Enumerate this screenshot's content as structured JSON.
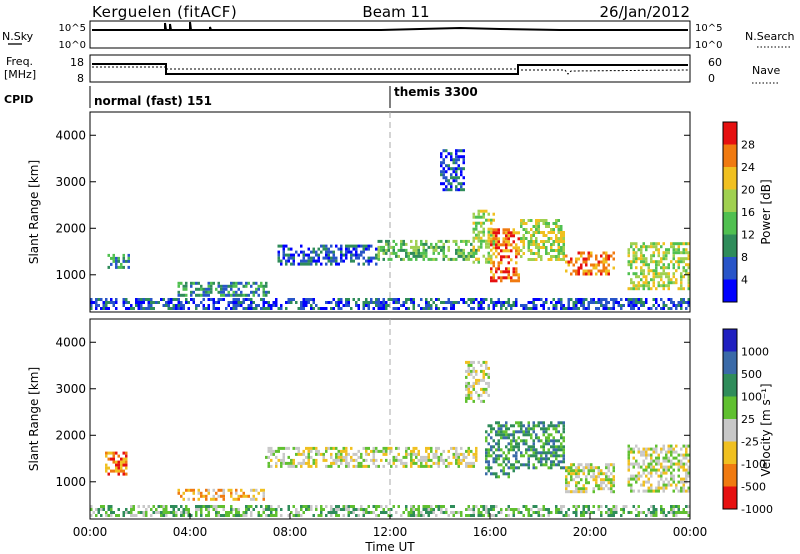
{
  "header": {
    "station": "Kerguelen (fitACF)",
    "beam": "Beam 11",
    "date": "26/Jan/2012"
  },
  "summary_panels": {
    "nsky_label": "N.Sky",
    "nsky_ticks": [
      "10^5",
      "10^0"
    ],
    "nsearch_label": "N.Search",
    "nsearch_ticks": [
      "10^5",
      "10^0"
    ],
    "freq_label_1": "Freq.",
    "freq_label_2": "[MHz]",
    "freq_ticks": [
      "18",
      "8"
    ],
    "nave_label": "Nave",
    "nave_ticks": [
      "60",
      "0"
    ],
    "cpid_label": "CPID",
    "cpid_segments": [
      {
        "label": "normal (fast) 151",
        "start_hour": 0
      },
      {
        "label": "themis 3300",
        "start_hour": 12
      }
    ]
  },
  "chart_data": [
    {
      "type": "heatmap",
      "name": "power",
      "ylabel": "Slant Range [km]",
      "yticks": [
        1000,
        2000,
        3000,
        4000
      ],
      "ylim": [
        200,
        4500
      ],
      "xlim": [
        0,
        24
      ],
      "colorbar_label": "Power [dB]",
      "colorbar_ticks": [
        "28",
        "24",
        "20",
        "16",
        "12",
        "8",
        "4"
      ],
      "colorbar_colors": [
        "#0000ff",
        "#2855c8",
        "#2f8c5a",
        "#50c050",
        "#a0d050",
        "#f0c020",
        "#f07a10",
        "#e61010"
      ],
      "regions": [
        {
          "t0": 0.0,
          "t1": 24.0,
          "r0": 250,
          "r1": 500,
          "level": 1
        },
        {
          "t0": 0.7,
          "t1": 1.6,
          "r0": 1150,
          "r1": 1450,
          "level": 2
        },
        {
          "t0": 3.5,
          "t1": 7.2,
          "r0": 550,
          "r1": 850,
          "level": 2
        },
        {
          "t0": 7.5,
          "t1": 11.5,
          "r0": 1250,
          "r1": 1650,
          "level": 1
        },
        {
          "t0": 11.5,
          "t1": 15.5,
          "r0": 1300,
          "r1": 1750,
          "level": 3
        },
        {
          "t0": 15.3,
          "t1": 16.2,
          "r0": 1300,
          "r1": 2400,
          "level": 4
        },
        {
          "t0": 16.0,
          "t1": 17.2,
          "r0": 900,
          "r1": 2000,
          "level": 6
        },
        {
          "t0": 17.2,
          "t1": 19.0,
          "r0": 1300,
          "r1": 2200,
          "level": 4
        },
        {
          "t0": 19.0,
          "t1": 21.0,
          "r0": 1000,
          "r1": 1500,
          "level": 6
        },
        {
          "t0": 21.5,
          "t1": 24.0,
          "r0": 700,
          "r1": 1700,
          "level": 4
        },
        {
          "t0": 14.0,
          "t1": 15.0,
          "r0": 2800,
          "r1": 3700,
          "level": 1
        }
      ]
    },
    {
      "type": "heatmap",
      "name": "velocity",
      "ylabel": "Slant Range [km]",
      "yticks": [
        1000,
        2000,
        3000,
        4000
      ],
      "ylim": [
        200,
        4500
      ],
      "xlim": [
        0,
        24
      ],
      "xlabel": "Time UT",
      "xticks": [
        "00:00",
        "04:00",
        "08:00",
        "12:00",
        "16:00",
        "20:00",
        "00:00"
      ],
      "colorbar_label": "Velocity [m s⁻¹]",
      "colorbar_ticks": [
        "1000",
        "500",
        "100",
        "25",
        "-25",
        "-100",
        "-500",
        "-1000"
      ],
      "colorbar_colors": [
        "#2020c0",
        "#3a6aa8",
        "#2f8c5a",
        "#60c030",
        "#c8c8c8",
        "#f0c020",
        "#f07a10",
        "#e61010"
      ],
      "regions": [
        {
          "t0": 0.0,
          "t1": 24.0,
          "r0": 250,
          "r1": 500,
          "level": 3
        },
        {
          "t0": 0.6,
          "t1": 1.5,
          "r0": 1150,
          "r1": 1650,
          "level": 6
        },
        {
          "t0": 3.5,
          "t1": 7.0,
          "r0": 600,
          "r1": 850,
          "level": 5
        },
        {
          "t0": 7.0,
          "t1": 15.5,
          "r0": 1300,
          "r1": 1750,
          "level": 4
        },
        {
          "t0": 15.0,
          "t1": 16.0,
          "r0": 2700,
          "r1": 3600,
          "level": 4
        },
        {
          "t0": 15.8,
          "t1": 17.0,
          "r0": 1100,
          "r1": 2300,
          "level": 2
        },
        {
          "t0": 17.0,
          "t1": 19.0,
          "r0": 1300,
          "r1": 2300,
          "level": 2
        },
        {
          "t0": 19.0,
          "t1": 21.0,
          "r0": 800,
          "r1": 1400,
          "level": 4
        },
        {
          "t0": 21.5,
          "t1": 24.0,
          "r0": 800,
          "r1": 1800,
          "level": 4
        }
      ]
    }
  ]
}
